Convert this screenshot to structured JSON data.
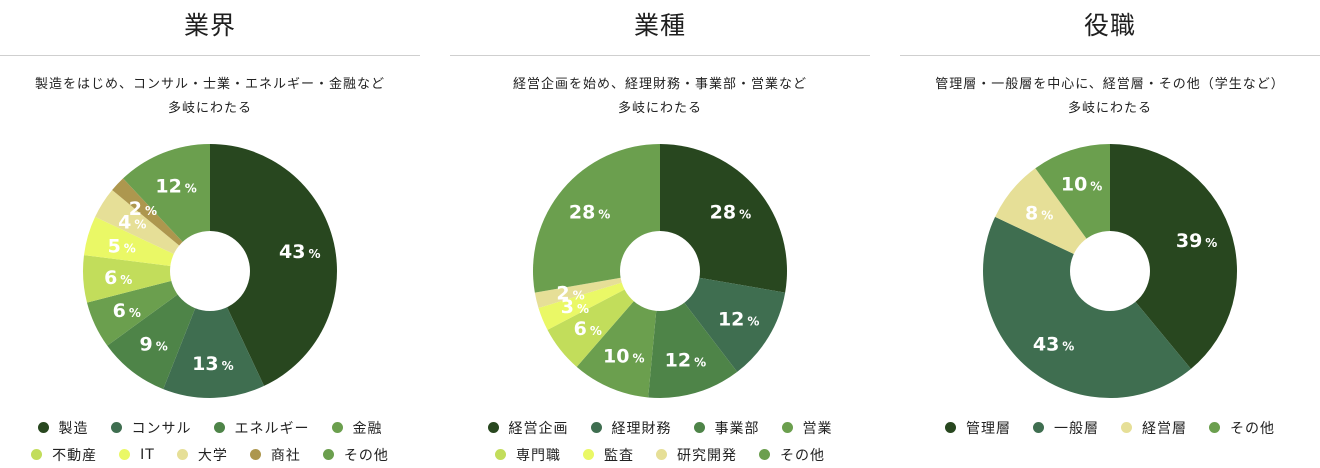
{
  "chart_data": [
    {
      "type": "pie",
      "title": "業界",
      "subtitle": [
        "製造をはじめ、コンサル・士業・エネルギー・金融など",
        "多岐にわたる"
      ],
      "categories": [
        "製造",
        "コンサル",
        "エネルギー",
        "金融",
        "不動産",
        "IT",
        "大学",
        "商社",
        "その他"
      ],
      "values": [
        43,
        13,
        9,
        6,
        6,
        5,
        4,
        2,
        12
      ],
      "value_suffix": "%",
      "colors": [
        "#28471f",
        "#3f6e50",
        "#4e8448",
        "#6b9f4e",
        "#c2dd5b",
        "#eaf866",
        "#e6df97",
        "#ad974e",
        "#6b9f4e"
      ],
      "legend_rows": [
        [
          0,
          1,
          2,
          3
        ],
        [
          4,
          5,
          6,
          7,
          8
        ]
      ],
      "legend_position": "bottom"
    },
    {
      "type": "pie",
      "title": "業種",
      "subtitle": [
        "経営企画を始め、経理財務・事業部・営業など",
        "多岐にわたる"
      ],
      "categories": [
        "経営企画",
        "経理財務",
        "事業部",
        "営業",
        "専門職",
        "監査",
        "研究開発",
        "その他"
      ],
      "values": [
        28,
        12,
        12,
        10,
        6,
        3,
        2,
        28
      ],
      "value_suffix": "%",
      "colors": [
        "#28471f",
        "#3f6e50",
        "#4e8448",
        "#6b9f4e",
        "#c2dd5b",
        "#eaf866",
        "#e6df97",
        "#6b9f4e"
      ],
      "legend_rows": [
        [
          0,
          1,
          2,
          3
        ],
        [
          4,
          5,
          6,
          7
        ]
      ],
      "legend_position": "bottom"
    },
    {
      "type": "pie",
      "title": "役職",
      "subtitle": [
        "管理層・一般層を中心に、経営層・その他（学生など）",
        "多岐にわたる"
      ],
      "categories": [
        "管理層",
        "一般層",
        "経営層",
        "その他"
      ],
      "values": [
        39,
        43,
        8,
        10
      ],
      "value_suffix": "%",
      "colors": [
        "#28471f",
        "#3f6e50",
        "#e6df97",
        "#6b9f4e"
      ],
      "legend_rows": [
        [
          0,
          1,
          2,
          3
        ]
      ],
      "legend_position": "bottom"
    }
  ]
}
